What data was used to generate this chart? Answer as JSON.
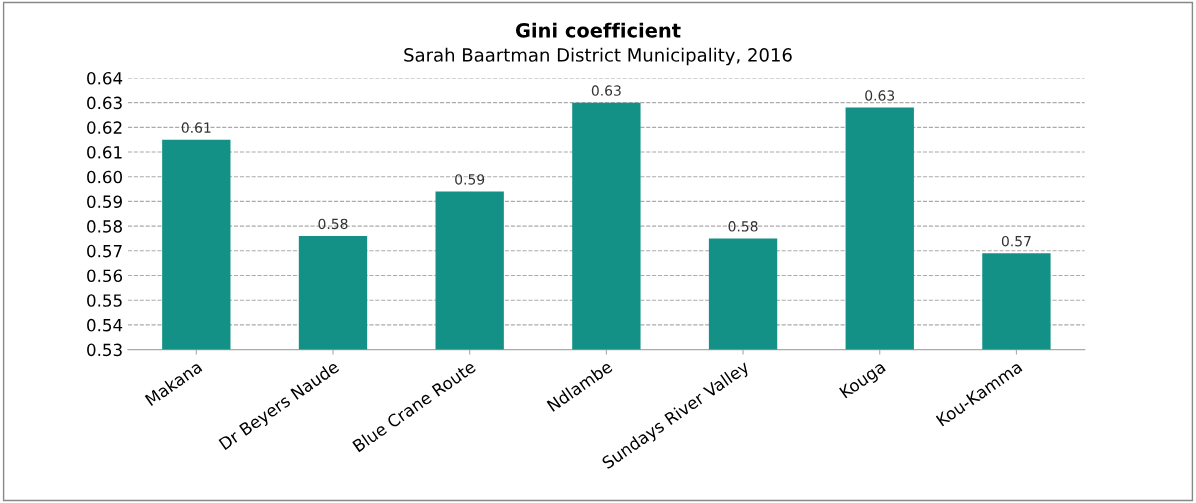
{
  "chart_data": {
    "type": "bar",
    "title": "Gini coefficient",
    "subtitle": "Sarah Baartman District Municipality, 2016",
    "categories": [
      "Makana",
      "Dr Beyers Naude",
      "Blue Crane Route",
      "Ndlambe",
      "Sundays River Valley",
      "Kouga",
      "Kou-Kamma"
    ],
    "values": [
      0.615,
      0.576,
      0.594,
      0.63,
      0.575,
      0.628,
      0.569
    ],
    "value_labels": [
      "0.61",
      "0.58",
      "0.59",
      "0.63",
      "0.58",
      "0.63",
      "0.57"
    ],
    "color": "#139187",
    "ylim": [
      0.53,
      0.64
    ],
    "yticks": [
      {
        "value": 0.53,
        "label": "0.53"
      },
      {
        "value": 0.54,
        "label": "0.54"
      },
      {
        "value": 0.55,
        "label": "0.55"
      },
      {
        "value": 0.56,
        "label": "0.56"
      },
      {
        "value": 0.57,
        "label": "0.57"
      },
      {
        "value": 0.58,
        "label": "0.58"
      },
      {
        "value": 0.59,
        "label": "0.59"
      },
      {
        "value": 0.6,
        "label": "0.60"
      },
      {
        "value": 0.61,
        "label": "0.61"
      },
      {
        "value": 0.62,
        "label": "0.62"
      },
      {
        "value": 0.63,
        "label": "0.63"
      },
      {
        "value": 0.64,
        "label": "0.64"
      }
    ],
    "grid": "y",
    "legend": false
  }
}
